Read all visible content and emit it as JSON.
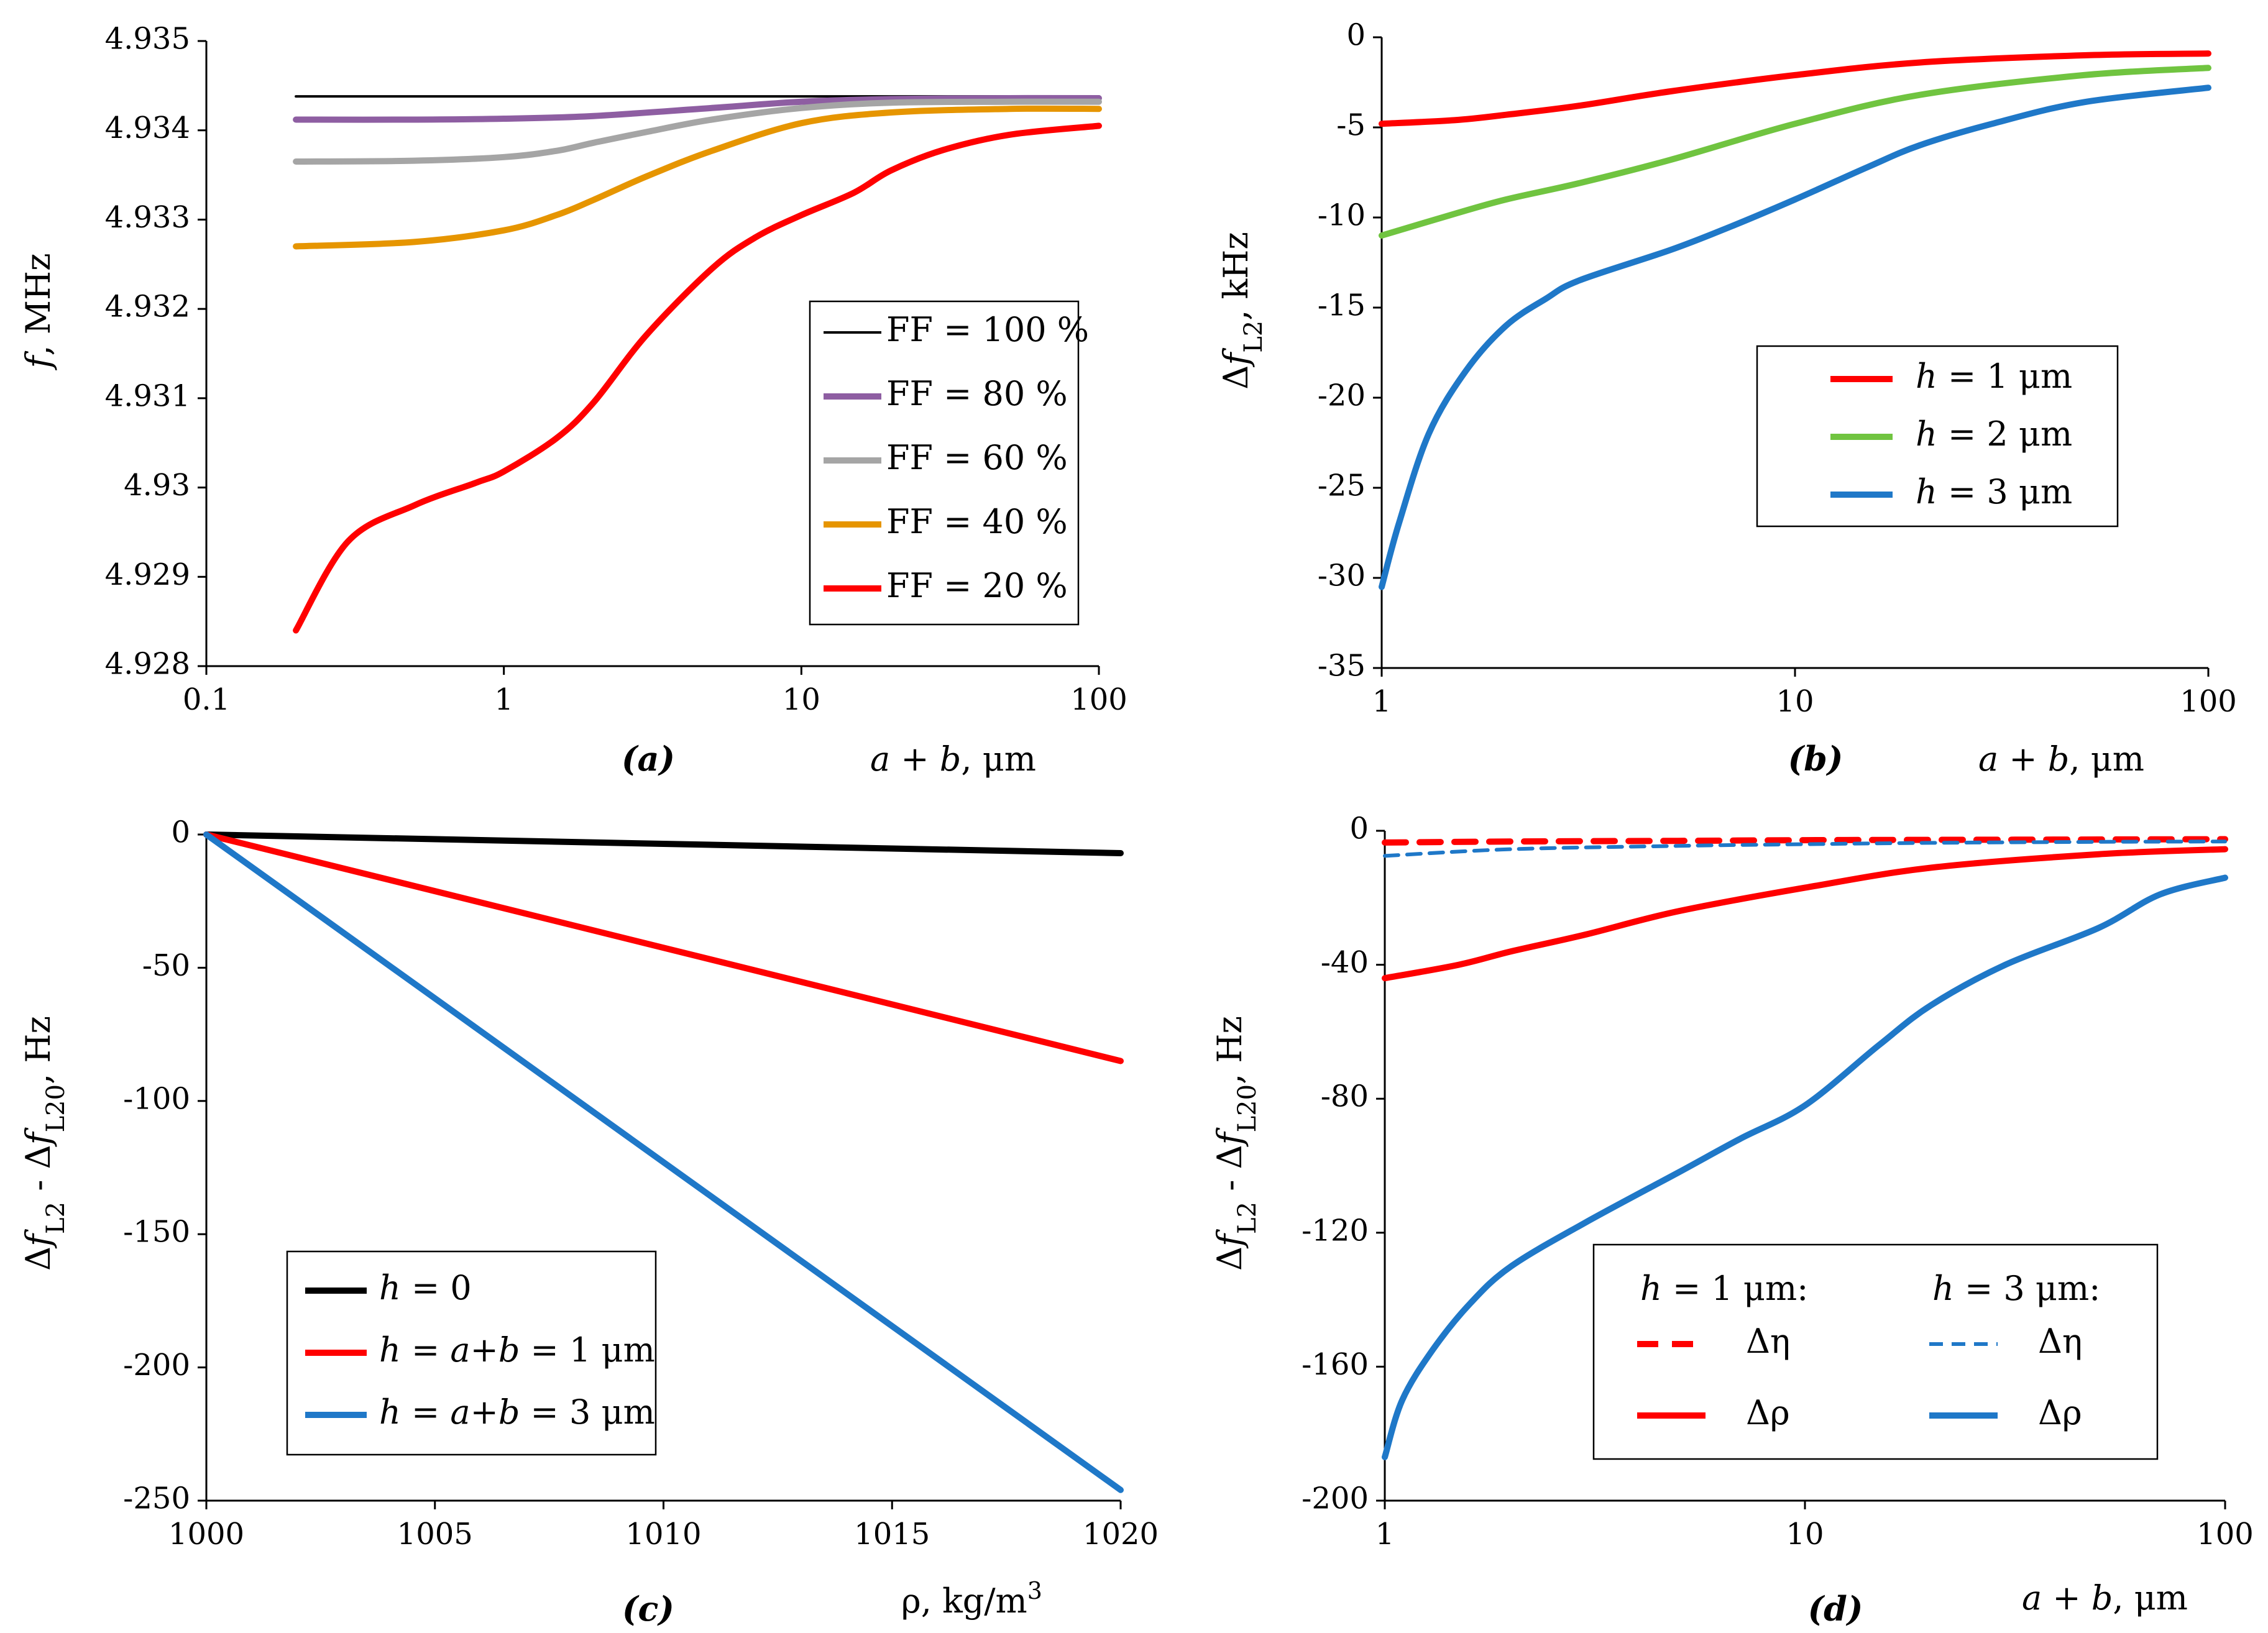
{
  "chart_data": [
    {
      "id": "a",
      "type": "line",
      "caption": "(a)",
      "xscale": "log",
      "xlim": [
        0.1,
        100
      ],
      "ylim": [
        4.928,
        4.935
      ],
      "xticks": [
        0.1,
        1,
        10,
        100
      ],
      "xtick_labels": [
        "0.1",
        "1",
        "10",
        "100"
      ],
      "yticks": [
        4.928,
        4.929,
        4.93,
        4.931,
        4.932,
        4.933,
        4.934,
        4.935
      ],
      "ytick_labels": [
        "4.928",
        "4.929",
        "4.93",
        "4.931",
        "4.932",
        "4.933",
        "4.934",
        "4.935"
      ],
      "xlabel": "a + b, μm",
      "ylabel": "f, MHz",
      "legend_position": "right-middle",
      "series": [
        {
          "name": "FF = 100 %",
          "color": "#000000",
          "x": [
            0.2,
            100
          ],
          "y": [
            4.93438,
            4.93438
          ]
        },
        {
          "name": "FF = 80 %",
          "color": "#8e5ea2",
          "x": [
            0.2,
            0.5,
            1,
            2,
            5,
            10,
            20,
            50,
            100
          ],
          "y": [
            4.93412,
            4.93412,
            4.93413,
            4.93416,
            4.93425,
            4.93432,
            4.93435,
            4.93436,
            4.93436
          ]
        },
        {
          "name": "FF = 60 %",
          "color": "#a5a5a5",
          "x": [
            0.2,
            0.5,
            1,
            1.5,
            2,
            3,
            5,
            10,
            20,
            50,
            100
          ],
          "y": [
            4.93365,
            4.93366,
            4.9337,
            4.93377,
            4.93386,
            4.93398,
            4.93412,
            4.93425,
            4.93431,
            4.93432,
            4.93432
          ]
        },
        {
          "name": "FF = 40 %",
          "color": "#e69500",
          "x": [
            0.2,
            0.5,
            1,
            1.5,
            2,
            3,
            5,
            10,
            20,
            50,
            100
          ],
          "y": [
            4.9327,
            4.93275,
            4.93288,
            4.93305,
            4.93322,
            4.93348,
            4.93377,
            4.93408,
            4.9342,
            4.93424,
            4.93424
          ]
        },
        {
          "name": "FF = 20 %",
          "color": "#ff0000",
          "x": [
            0.2,
            0.3,
            0.5,
            0.8,
            1,
            1.5,
            2,
            3,
            5,
            7,
            10,
            15,
            20,
            30,
            50,
            100
          ],
          "y": [
            4.9284,
            4.9294,
            4.9298,
            4.93005,
            4.93018,
            4.93055,
            4.93095,
            4.9317,
            4.93245,
            4.9328,
            4.93305,
            4.9333,
            4.93355,
            4.93378,
            4.93395,
            4.93405
          ]
        }
      ]
    },
    {
      "id": "b",
      "type": "line",
      "caption": "(b)",
      "xscale": "log",
      "xlim": [
        1,
        100
      ],
      "ylim": [
        -35,
        0
      ],
      "xticks": [
        1,
        10,
        100
      ],
      "xtick_labels": [
        "1",
        "10",
        "100"
      ],
      "yticks": [
        -35,
        -30,
        -25,
        -20,
        -15,
        -10,
        -5,
        0
      ],
      "ytick_labels": [
        "-35",
        "-30",
        "-25",
        "-20",
        "-15",
        "-10",
        "-5",
        "0"
      ],
      "xlabel": "a + b, μm",
      "ylabel": "Δf",
      "ylabel_sub": "L2",
      "ylabel_rest": ", kHz",
      "legend_position": "right-middle",
      "series": [
        {
          "name": "h = 1 μm",
          "name_var": "h",
          "name_rest": " = 1 μm",
          "color": "#ff0000",
          "x": [
            1,
            1.5,
            2,
            3,
            5,
            10,
            20,
            50,
            100
          ],
          "y": [
            -4.8,
            -4.6,
            -4.3,
            -3.8,
            -3.0,
            -2.1,
            -1.4,
            -1.0,
            -0.9
          ]
        },
        {
          "name": "h = 2 μm",
          "name_var": "h",
          "name_rest": " = 2 μm",
          "color": "#70c440",
          "x": [
            1,
            1.5,
            2,
            3,
            5,
            10,
            20,
            50,
            100
          ],
          "y": [
            -11,
            -9.8,
            -9.0,
            -8.1,
            -6.8,
            -4.8,
            -3.2,
            -2.1,
            -1.7
          ]
        },
        {
          "name": "h = 3 μm",
          "name_var": "h",
          "name_rest": " = 3 μm",
          "color": "#1f78c8",
          "x": [
            1,
            1.1,
            1.3,
            1.6,
            2,
            2.5,
            3,
            5,
            7,
            10,
            15,
            20,
            30,
            50,
            100
          ],
          "y": [
            -30.5,
            -27,
            -22,
            -18.5,
            -16,
            -14.5,
            -13.5,
            -11.8,
            -10.5,
            -9.0,
            -7.2,
            -6.0,
            -4.8,
            -3.6,
            -2.8
          ]
        }
      ]
    },
    {
      "id": "c",
      "type": "line",
      "caption": "(c)",
      "xscale": "linear",
      "xlim": [
        1000,
        1020
      ],
      "ylim": [
        -250,
        0
      ],
      "xticks": [
        1000,
        1005,
        1010,
        1015,
        1020
      ],
      "xtick_labels": [
        "1000",
        "1005",
        "1010",
        "1015",
        "1020"
      ],
      "yticks": [
        -250,
        -200,
        -150,
        -100,
        -50,
        0
      ],
      "ytick_labels": [
        "-250",
        "-200",
        "-150",
        "-100",
        "-50",
        "0"
      ],
      "xlabel": "ρ, kg/m",
      "xlabel_sup": "3",
      "ylabel": "Δf",
      "ylabel_sub": "L2",
      "ylabel_mid": " - Δf",
      "ylabel_sub2": "L20",
      "ylabel_rest": ", Hz",
      "legend_position": "bottom-left",
      "series": [
        {
          "name": "h = 0",
          "name_var": "h",
          "name_rest": " = 0",
          "color": "#000000",
          "x": [
            1000,
            1020
          ],
          "y": [
            0,
            -7
          ]
        },
        {
          "name": "h = a+b = 1 μm",
          "name_var": "h",
          "name_rest": " = a+b = 1 μm",
          "color": "#ff0000",
          "x": [
            1000,
            1020
          ],
          "y": [
            0,
            -85
          ]
        },
        {
          "name": "h = a+b = 3 μm",
          "name_var": "h",
          "name_rest": " = a+b = 3 μm",
          "color": "#1f78c8",
          "x": [
            1000,
            1020
          ],
          "y": [
            0,
            -246
          ]
        }
      ]
    },
    {
      "id": "d",
      "type": "line",
      "caption": "(d)",
      "xscale": "log",
      "xlim": [
        1,
        100
      ],
      "ylim": [
        -200,
        0
      ],
      "xticks": [
        1,
        10,
        100
      ],
      "xtick_labels": [
        "1",
        "10",
        "100"
      ],
      "yticks": [
        -200,
        -160,
        -120,
        -80,
        -40,
        0
      ],
      "ytick_labels": [
        "-200",
        "-160",
        "-120",
        "-80",
        "-40",
        "0"
      ],
      "xlabel": "a + b, μm",
      "ylabel": "Δf",
      "ylabel_sub": "L2",
      "ylabel_mid": " - Δf",
      "ylabel_sub2": "L20",
      "ylabel_rest": ", Hz",
      "legend_position": "bottom-right",
      "legend_headers": [
        "h = 1 μm:",
        "h = 3 μm:"
      ],
      "series": [
        {
          "name": "Δη",
          "group": "h = 1 μm",
          "color": "#ff0000",
          "dash": "dashed",
          "x": [
            1,
            2,
            5,
            10,
            20,
            50,
            100
          ],
          "y": [
            -3.5,
            -3.2,
            -3.0,
            -2.8,
            -2.7,
            -2.6,
            -2.5
          ]
        },
        {
          "name": "Δρ",
          "group": "h = 1 μm",
          "color": "#ff0000",
          "dash": "solid",
          "x": [
            1,
            1.5,
            2,
            3,
            5,
            10,
            20,
            50,
            100
          ],
          "y": [
            -44,
            -40,
            -36,
            -31,
            -24,
            -17,
            -11,
            -7,
            -5.5
          ]
        },
        {
          "name": "Δη",
          "group": "h = 3 μm",
          "color": "#1f78c8",
          "dash": "dashed-thin",
          "x": [
            1,
            2,
            5,
            10,
            20,
            50,
            100
          ],
          "y": [
            -7.5,
            -5.5,
            -4.5,
            -4,
            -3.6,
            -3.3,
            -3.2
          ]
        },
        {
          "name": "Δρ",
          "group": "h = 3 μm",
          "color": "#1f78c8",
          "dash": "solid",
          "x": [
            1,
            1.1,
            1.3,
            1.6,
            2,
            3,
            5,
            7,
            10,
            15,
            20,
            30,
            50,
            70,
            100
          ],
          "y": [
            -187,
            -170,
            -155,
            -141,
            -130,
            -117,
            -102,
            -92,
            -82,
            -64,
            -52,
            -40,
            -29,
            -19,
            -14
          ]
        }
      ]
    }
  ]
}
